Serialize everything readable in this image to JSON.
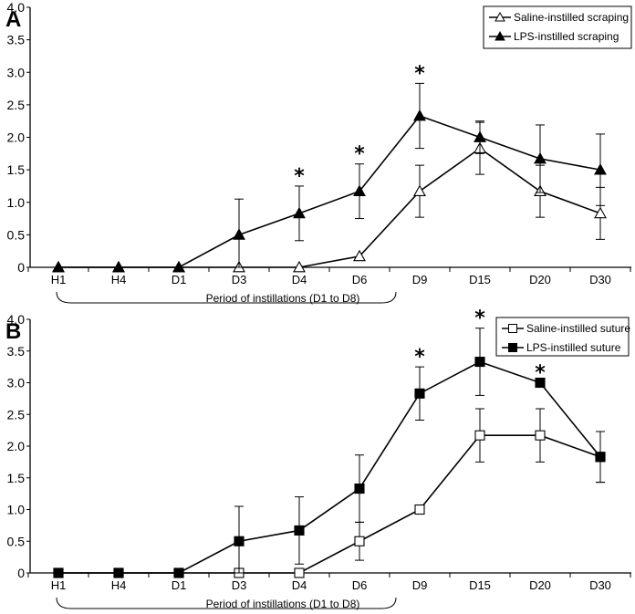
{
  "chart_data": [
    {
      "type": "line",
      "panel_label": "A",
      "categories": [
        "H1",
        "H4",
        "D1",
        "D3",
        "D4",
        "D6",
        "D9",
        "D15",
        "D20",
        "D30"
      ],
      "ylim": [
        0,
        4.0
      ],
      "yticks": [
        "0",
        "0.5",
        "1.0",
        "1.5",
        "2.0",
        "2.5",
        "3.0",
        "3.5",
        "4.0"
      ],
      "yticks_values": [
        0,
        0.5,
        1.0,
        1.5,
        2.0,
        2.5,
        3.0,
        3.5,
        4.0
      ],
      "series": [
        {
          "name": "Saline-instilled scraping",
          "marker": "open-triangle",
          "values": [
            0,
            0,
            0,
            0,
            0,
            0.17,
            1.17,
            1.83,
            1.17,
            0.83
          ],
          "errors": [
            0,
            0,
            0,
            0,
            0,
            0,
            0.4,
            0.4,
            0.4,
            0.4
          ]
        },
        {
          "name": "LPS-instilled scraping",
          "marker": "filled-triangle",
          "values": [
            0,
            0,
            0,
            0.5,
            0.83,
            1.17,
            2.33,
            2.0,
            1.67,
            1.5
          ],
          "errors": [
            0,
            0,
            0,
            0.55,
            0.42,
            0.42,
            0.5,
            0.25,
            0.52,
            0.55
          ]
        }
      ],
      "significance_marker": "*",
      "significant_at": [
        "D4",
        "D6",
        "D9"
      ],
      "annotation": "Period of instillations (D1 to D8)",
      "legend_position": "top-right"
    },
    {
      "type": "line",
      "panel_label": "B",
      "categories": [
        "H1",
        "H4",
        "D1",
        "D3",
        "D4",
        "D6",
        "D9",
        "D15",
        "D20",
        "D30"
      ],
      "ylim": [
        0,
        4.0
      ],
      "yticks": [
        "0",
        "0.5",
        "1.0",
        "1.5",
        "2.0",
        "2.5",
        "3.0",
        "3.5",
        "4.0"
      ],
      "yticks_values": [
        0,
        0.5,
        1.0,
        1.5,
        2.0,
        2.5,
        3.0,
        3.5,
        4.0
      ],
      "series": [
        {
          "name": "Saline-instilled suture",
          "marker": "open-square",
          "values": [
            0,
            0,
            0,
            0,
            0,
            0.5,
            1.0,
            2.17,
            2.17,
            1.83
          ],
          "errors": [
            0,
            0,
            0,
            0,
            0,
            0.3,
            0,
            0.42,
            0.42,
            0.4
          ]
        },
        {
          "name": "LPS-instilled suture",
          "marker": "filled-square",
          "values": [
            0,
            0,
            0,
            0.5,
            0.67,
            1.33,
            2.83,
            3.33,
            3.0,
            1.83
          ],
          "errors": [
            0,
            0,
            0,
            0.55,
            0.53,
            0.53,
            0.42,
            0.53,
            0,
            0.4
          ]
        }
      ],
      "significance_marker": "*",
      "significant_at": [
        "D9",
        "D15",
        "D20"
      ],
      "annotation": "Period of instillations (D1 to D8)",
      "legend_position": "top-right"
    }
  ]
}
